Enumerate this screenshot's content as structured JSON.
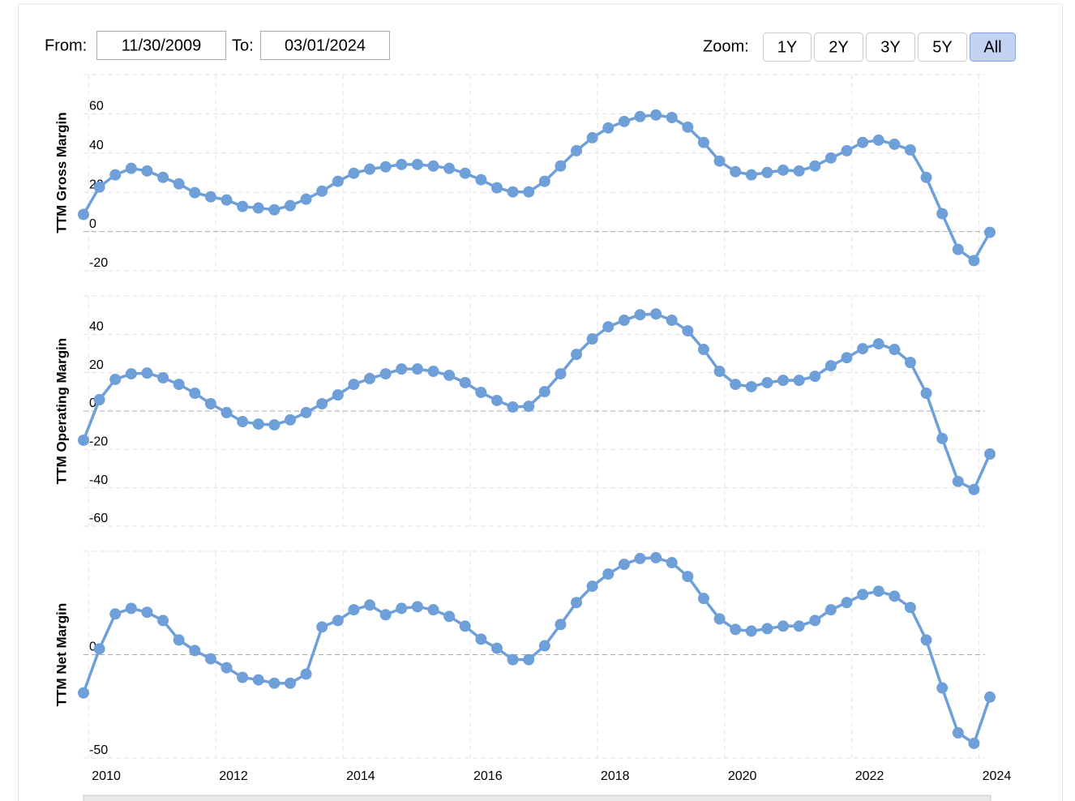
{
  "controls": {
    "from_label": "From:",
    "from_value": "11/30/2009",
    "to_label": "To:",
    "to_value": "03/01/2024",
    "zoom_label": "Zoom:",
    "zoom_buttons": [
      "1Y",
      "2Y",
      "3Y",
      "5Y",
      "All"
    ],
    "active_zoom": "All"
  },
  "chart_data": [
    {
      "type": "line",
      "ylabel": "TTM Gross Margin",
      "color": "#6f9fd8",
      "x": [
        2009.92,
        2010.17,
        2010.42,
        2010.67,
        2010.92,
        2011.17,
        2011.42,
        2011.67,
        2011.92,
        2012.17,
        2012.42,
        2012.67,
        2012.92,
        2013.17,
        2013.42,
        2013.67,
        2013.92,
        2014.17,
        2014.42,
        2014.67,
        2014.92,
        2015.17,
        2015.42,
        2015.67,
        2015.92,
        2016.17,
        2016.42,
        2016.67,
        2016.92,
        2017.17,
        2017.42,
        2017.67,
        2017.92,
        2018.17,
        2018.42,
        2018.67,
        2018.92,
        2019.17,
        2019.42,
        2019.67,
        2019.92,
        2020.17,
        2020.42,
        2020.67,
        2020.92,
        2021.17,
        2021.42,
        2021.67,
        2021.92,
        2022.17,
        2022.42,
        2022.67,
        2022.92,
        2023.17,
        2023.42,
        2023.67,
        2023.92,
        2024.17
      ],
      "values": [
        8.7,
        22.7,
        28.9,
        32.2,
        30.9,
        27.6,
        24.3,
        19.8,
        17.7,
        16.1,
        12.8,
        12.0,
        11.1,
        13.2,
        16.5,
        20.6,
        25.6,
        29.7,
        31.8,
        33.0,
        34.2,
        34.2,
        33.4,
        32.2,
        29.7,
        26.4,
        22.3,
        20.2,
        20.2,
        25.6,
        33.4,
        41.2,
        47.8,
        52.8,
        56.1,
        58.6,
        59.4,
        58.1,
        53.2,
        45.4,
        35.9,
        30.5,
        28.9,
        30.1,
        31.3,
        30.9,
        33.4,
        37.5,
        41.2,
        45.4,
        46.6,
        44.5,
        41.6,
        27.6,
        9.1,
        -9.1,
        -14.8,
        -0.4
      ],
      "xlim": [
        2009.92,
        2024.17
      ],
      "xticks": [
        2010,
        2012,
        2014,
        2016,
        2018,
        2020,
        2022,
        2024
      ],
      "ylim": [
        -20,
        80
      ],
      "yticks": [
        -20,
        0,
        20,
        40,
        60
      ],
      "grid": true
    },
    {
      "type": "line",
      "ylabel": "TTM Operating Margin",
      "color": "#6f9fd8",
      "x": [
        2009.92,
        2010.17,
        2010.42,
        2010.67,
        2010.92,
        2011.17,
        2011.42,
        2011.67,
        2011.92,
        2012.17,
        2012.42,
        2012.67,
        2012.92,
        2013.17,
        2013.42,
        2013.67,
        2013.92,
        2014.17,
        2014.42,
        2014.67,
        2014.92,
        2015.17,
        2015.42,
        2015.67,
        2015.92,
        2016.17,
        2016.42,
        2016.67,
        2016.92,
        2017.17,
        2017.42,
        2017.67,
        2017.92,
        2018.17,
        2018.42,
        2018.67,
        2018.92,
        2019.17,
        2019.42,
        2019.67,
        2019.92,
        2020.17,
        2020.42,
        2020.67,
        2020.92,
        2021.17,
        2021.42,
        2021.67,
        2021.92,
        2022.17,
        2022.42,
        2022.67,
        2022.92,
        2023.17,
        2023.42,
        2023.67,
        2023.92,
        2024.17
      ],
      "values": [
        -15.2,
        5.9,
        16.5,
        19.4,
        19.8,
        17.3,
        13.9,
        9.3,
        3.8,
        -0.8,
        -5.5,
        -6.8,
        -7.2,
        -4.6,
        -0.8,
        3.8,
        8.4,
        13.9,
        16.9,
        19.4,
        21.9,
        21.9,
        20.7,
        18.6,
        14.8,
        9.7,
        5.5,
        2.1,
        2.5,
        10.1,
        19.4,
        29.5,
        37.6,
        43.9,
        47.3,
        50.2,
        50.6,
        47.3,
        41.8,
        32.1,
        20.7,
        13.9,
        12.7,
        14.8,
        16.0,
        16.0,
        18.1,
        23.6,
        27.8,
        32.5,
        35.0,
        32.1,
        25.3,
        9.3,
        -14.3,
        -36.7,
        -40.9,
        -22.4
      ],
      "xlim": [
        2009.92,
        2024.17
      ],
      "xticks": [
        2010,
        2012,
        2014,
        2016,
        2018,
        2020,
        2022,
        2024
      ],
      "ylim": [
        -60,
        60
      ],
      "yticks": [
        -60,
        -40,
        -20,
        0,
        20,
        40
      ],
      "grid": true
    },
    {
      "type": "line",
      "ylabel": "TTM Net Margin",
      "color": "#6f9fd8",
      "x": [
        2009.92,
        2010.17,
        2010.42,
        2010.67,
        2010.92,
        2011.17,
        2011.42,
        2011.67,
        2011.92,
        2012.17,
        2012.42,
        2012.67,
        2012.92,
        2013.17,
        2013.42,
        2013.67,
        2013.92,
        2014.17,
        2014.42,
        2014.67,
        2014.92,
        2015.17,
        2015.42,
        2015.67,
        2015.92,
        2016.17,
        2016.42,
        2016.67,
        2016.92,
        2017.17,
        2017.42,
        2017.67,
        2017.92,
        2018.17,
        2018.42,
        2018.67,
        2018.92,
        2019.17,
        2019.42,
        2019.67,
        2019.92,
        2020.17,
        2020.42,
        2020.67,
        2020.92,
        2021.17,
        2021.42,
        2021.67,
        2021.92,
        2022.17,
        2022.42,
        2022.67,
        2022.92,
        2023.17,
        2023.42,
        2023.67,
        2023.92,
        2024.17
      ],
      "values": [
        -18.5,
        2.8,
        19.7,
        22.4,
        20.5,
        16.5,
        7.1,
        2.0,
        -2.0,
        -6.3,
        -11.0,
        -12.2,
        -13.8,
        -13.8,
        -9.4,
        13.4,
        16.5,
        21.7,
        24.0,
        19.3,
        22.4,
        23.2,
        21.7,
        18.5,
        13.8,
        7.5,
        3.1,
        -2.4,
        -2.4,
        4.3,
        14.6,
        25.2,
        33.1,
        39.0,
        43.7,
        46.5,
        46.9,
        44.5,
        37.8,
        27.2,
        17.3,
        12.2,
        11.4,
        12.6,
        13.8,
        13.8,
        16.5,
        21.7,
        25.2,
        29.1,
        30.7,
        28.3,
        22.8,
        7.1,
        -16.1,
        -37.8,
        -42.9,
        -20.5
      ],
      "xlim": [
        2009.92,
        2024.17
      ],
      "xticks": [
        2010,
        2012,
        2014,
        2016,
        2018,
        2020,
        2022,
        2024
      ],
      "ylim": [
        -50,
        50
      ],
      "yticks": [
        -50,
        0
      ],
      "grid": true
    }
  ]
}
